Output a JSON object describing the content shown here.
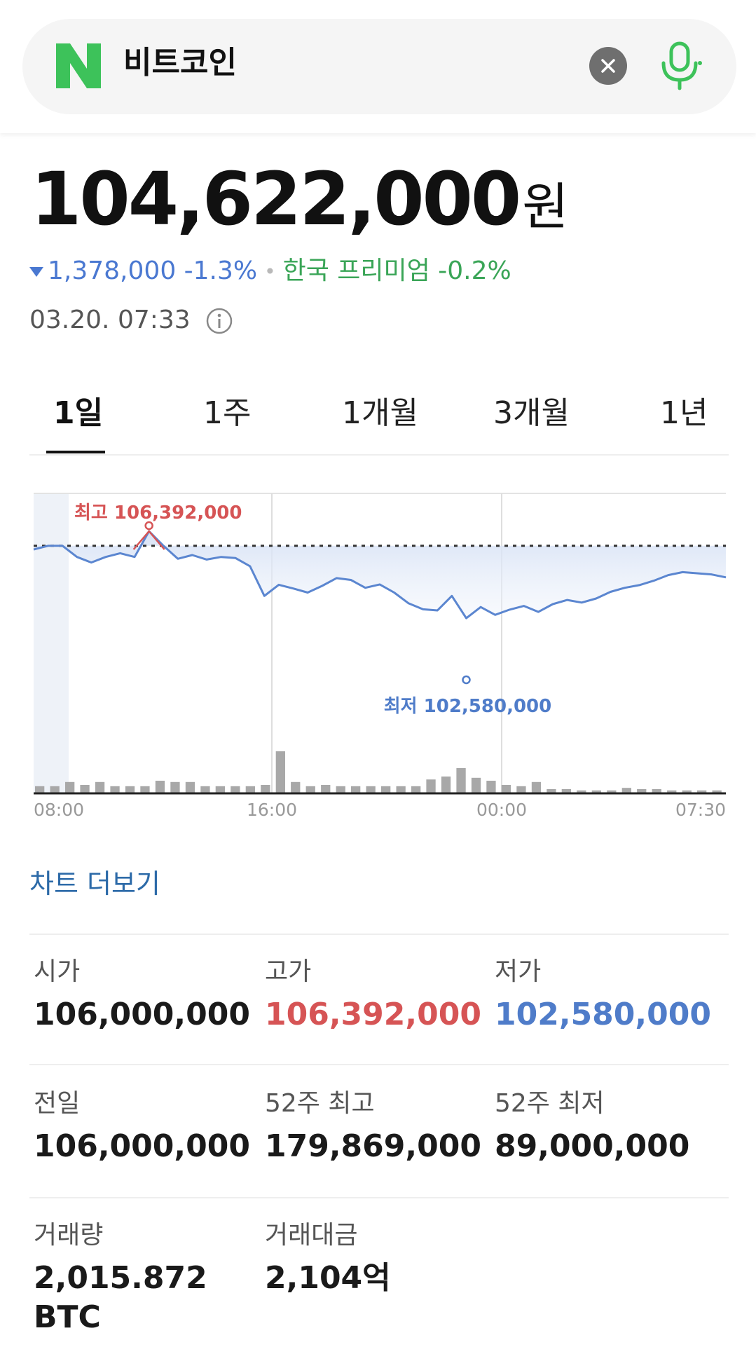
{
  "search": {
    "query": "비트코인",
    "logo_letter": "N"
  },
  "price": {
    "amount": "104,622,000",
    "unit": "원",
    "change": "1,378,000 -1.3%",
    "premium": "한국 프리미엄 -0.2%",
    "timestamp": "03.20. 07:33"
  },
  "tabs": [
    {
      "label": "1일",
      "active": true
    },
    {
      "label": "1주",
      "active": false
    },
    {
      "label": "1개월",
      "active": false
    },
    {
      "label": "3개월",
      "active": false
    },
    {
      "label": "1년",
      "active": false
    }
  ],
  "chart_data": {
    "type": "line",
    "x_tick_labels": [
      "08:00",
      "16:00",
      "00:00",
      "07:30"
    ],
    "high_label": "최고 106,392,000",
    "low_label": "최저 102,580,000",
    "high": 106392000,
    "low": 102580000,
    "previous_close": 106000000,
    "price_series": [
      105900000,
      106000000,
      106000000,
      105700000,
      105550000,
      105700000,
      105800000,
      105700000,
      106392000,
      106000000,
      105650000,
      105750000,
      105630000,
      105700000,
      105670000,
      105450000,
      104650000,
      104950000,
      104850000,
      104740000,
      104920000,
      105130000,
      105080000,
      104870000,
      104960000,
      104740000,
      104450000,
      104290000,
      104260000,
      104650000,
      104050000,
      104350000,
      104140000,
      104280000,
      104380000,
      104220000,
      104430000,
      104540000,
      104470000,
      104580000,
      104760000,
      104870000,
      104940000,
      105060000,
      105210000,
      105290000,
      105260000,
      105230000,
      105150000
    ],
    "volume_bars": [
      0.17,
      0.17,
      0.27,
      0.2,
      0.27,
      0.17,
      0.17,
      0.17,
      0.3,
      0.27,
      0.27,
      0.17,
      0.17,
      0.17,
      0.17,
      0.2,
      1.0,
      0.27,
      0.17,
      0.2,
      0.17,
      0.17,
      0.17,
      0.17,
      0.17,
      0.17,
      0.33,
      0.4,
      0.6,
      0.37,
      0.3,
      0.2,
      0.17,
      0.27,
      0.1,
      0.1,
      0.07,
      0.07,
      0.07,
      0.13,
      0.1,
      0.1,
      0.07,
      0.07,
      0.07,
      0.07
    ],
    "colors": {
      "line": "#5b86d0",
      "fill": "#dbe5f7",
      "high": "#d65455",
      "low": "#4f7cc9",
      "volume": "#a8a8a8"
    }
  },
  "more_chart_label": "차트 더보기",
  "stats": [
    {
      "label": "시가",
      "value": "106,000,000",
      "color": "default"
    },
    {
      "label": "고가",
      "value": "106,392,000",
      "color": "red"
    },
    {
      "label": "저가",
      "value": "102,580,000",
      "color": "blue"
    },
    {
      "label": "전일",
      "value": "106,000,000",
      "color": "default"
    },
    {
      "label": "52주 최고",
      "value": "179,869,000",
      "color": "default"
    },
    {
      "label": "52주 최저",
      "value": "89,000,000",
      "color": "default"
    },
    {
      "label": "거래량",
      "value": "2,015.872",
      "value2": "BTC",
      "color": "default"
    },
    {
      "label": "거래대금",
      "value": "2,104억",
      "color": "default"
    }
  ]
}
